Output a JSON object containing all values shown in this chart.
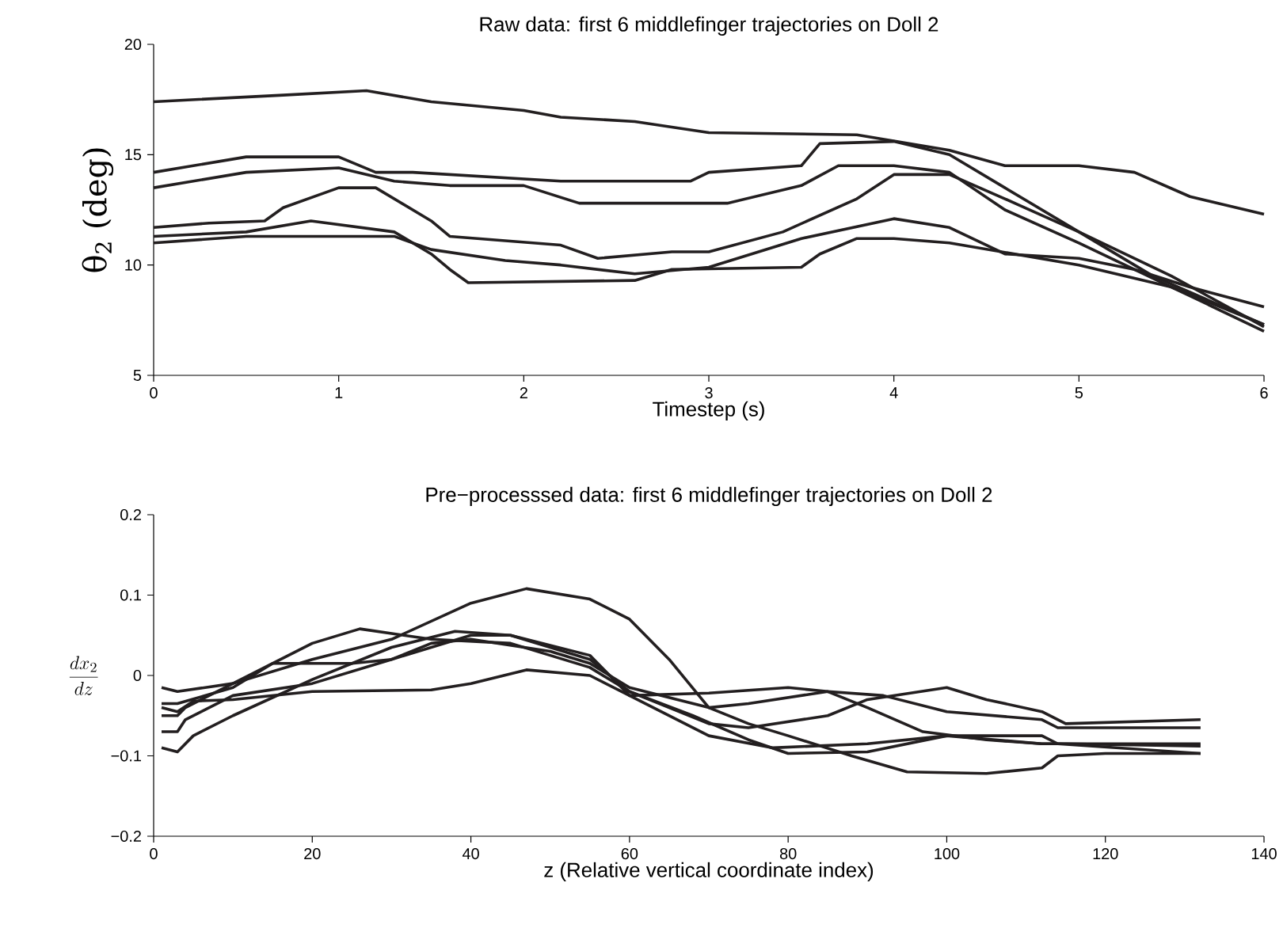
{
  "chart_data": [
    {
      "type": "line",
      "title": "Raw data: first 6 middlefinger trajectories on Doll 2",
      "xlabel": "Timestep (s)",
      "ylabel": "θ$_{2}$ (deg)",
      "xlim": [
        0,
        6
      ],
      "ylim": [
        5,
        20
      ],
      "xticks": [
        0,
        1,
        2,
        3,
        4,
        5,
        6
      ],
      "yticks": [
        5,
        10,
        15,
        20
      ],
      "series": [
        {
          "color": "#231f20",
          "x": [
            0,
            0.7,
            1.15,
            1.5,
            2.0,
            2.2,
            2.6,
            3.0,
            3.8,
            4.3,
            4.6,
            5.0,
            5.3,
            5.6,
            6.0
          ],
          "values": [
            17.4,
            17.7,
            17.9,
            17.4,
            17.0,
            16.7,
            16.5,
            16.0,
            15.9,
            15.2,
            14.5,
            14.5,
            14.2,
            13.1,
            12.3
          ]
        },
        {
          "color": "#231f20",
          "x": [
            0,
            0.5,
            1.0,
            1.2,
            1.4,
            2.2,
            2.9,
            3.0,
            3.5,
            3.6,
            4.0,
            4.3,
            4.6,
            5.0,
            5.5,
            6.0
          ],
          "values": [
            14.2,
            14.9,
            14.9,
            14.2,
            14.2,
            13.8,
            13.8,
            14.2,
            14.5,
            15.5,
            15.6,
            15.0,
            13.5,
            11.5,
            9.5,
            7.2
          ]
        },
        {
          "color": "#231f20",
          "x": [
            0,
            0.5,
            1.0,
            1.3,
            1.6,
            2.0,
            2.3,
            3.1,
            3.5,
            3.7,
            4.0,
            4.3,
            4.6,
            5.0,
            5.5,
            6.0
          ],
          "values": [
            13.5,
            14.2,
            14.4,
            13.8,
            13.6,
            13.6,
            12.8,
            12.8,
            13.6,
            14.5,
            14.5,
            14.2,
            12.5,
            11.0,
            9.0,
            7.0
          ]
        },
        {
          "color": "#231f20",
          "x": [
            0,
            0.3,
            0.6,
            0.7,
            1.0,
            1.2,
            1.5,
            1.6,
            2.2,
            2.4,
            2.8,
            3.0,
            3.4,
            3.8,
            4.0,
            4.3,
            4.6,
            5.0,
            5.4,
            6.0
          ],
          "values": [
            11.7,
            11.9,
            12.0,
            12.6,
            13.5,
            13.5,
            12.0,
            11.3,
            10.9,
            10.3,
            10.6,
            10.6,
            11.5,
            13.0,
            14.1,
            14.1,
            13.0,
            11.5,
            9.5,
            7.3
          ]
        },
        {
          "color": "#231f20",
          "x": [
            0,
            0.5,
            0.85,
            1.3,
            1.5,
            1.6,
            1.7,
            2.6,
            2.8,
            3.5,
            3.6,
            3.8,
            4.0,
            4.3,
            5.0,
            5.5,
            6.0
          ],
          "values": [
            11.3,
            11.5,
            12.0,
            11.5,
            10.5,
            9.8,
            9.2,
            9.3,
            9.8,
            9.9,
            10.5,
            11.2,
            11.2,
            11.0,
            10.0,
            9.0,
            7.3
          ]
        },
        {
          "color": "#231f20",
          "x": [
            0,
            0.5,
            1.3,
            1.5,
            1.9,
            2.2,
            2.6,
            3.0,
            3.5,
            4.0,
            4.3,
            4.6,
            5.0,
            5.3,
            5.6,
            6.0
          ],
          "values": [
            11.0,
            11.3,
            11.3,
            10.7,
            10.2,
            10.0,
            9.6,
            9.9,
            11.2,
            12.1,
            11.7,
            10.5,
            10.3,
            9.8,
            9.0,
            8.1
          ]
        }
      ]
    },
    {
      "type": "line",
      "title": "Pre−processsed data: first 6 middlefinger trajectories on Doll 2",
      "xlabel": "z (Relative vertical coordinate index)",
      "ylabel": "\\frac{dx_2}{dz}",
      "xlim": [
        0,
        140
      ],
      "ylim": [
        -0.2,
        0.2
      ],
      "xticks": [
        0,
        20,
        40,
        60,
        80,
        100,
        120,
        140
      ],
      "yticks": [
        {
          "value": -0.2,
          "label": "−0.2"
        },
        {
          "value": -0.1,
          "label": "−0.1"
        },
        0,
        0.1,
        0.2
      ],
      "series": [
        {
          "color": "#231f20",
          "x": [
            1,
            3,
            10,
            20,
            30,
            40,
            47,
            55,
            60,
            65,
            70,
            75,
            80,
            88,
            95,
            105,
            112,
            114,
            120,
            132
          ],
          "values": [
            -0.015,
            -0.02,
            -0.01,
            0.02,
            0.045,
            0.09,
            0.108,
            0.095,
            0.07,
            0.02,
            -0.04,
            -0.06,
            -0.075,
            -0.1,
            -0.12,
            -0.122,
            -0.115,
            -0.1,
            -0.097,
            -0.097
          ]
        },
        {
          "color": "#231f20",
          "x": [
            1,
            3,
            4,
            10,
            20,
            26,
            35,
            45,
            55,
            60,
            65,
            70,
            75,
            85,
            90,
            100,
            105,
            112,
            115,
            132
          ],
          "values": [
            -0.05,
            -0.05,
            -0.04,
            -0.01,
            0.04,
            0.058,
            0.045,
            0.04,
            0.01,
            -0.02,
            -0.04,
            -0.06,
            -0.065,
            -0.05,
            -0.03,
            -0.015,
            -0.03,
            -0.045,
            -0.06,
            -0.055
          ]
        },
        {
          "color": "#231f20",
          "x": [
            1,
            3,
            5,
            10,
            20,
            35,
            40,
            47,
            55,
            60,
            70,
            80,
            85,
            90,
            97,
            105,
            112,
            120,
            132
          ],
          "values": [
            -0.04,
            -0.045,
            -0.032,
            -0.03,
            -0.02,
            -0.018,
            -0.01,
            0.007,
            0.0,
            -0.025,
            -0.022,
            -0.015,
            -0.02,
            -0.04,
            -0.07,
            -0.08,
            -0.085,
            -0.085,
            -0.085
          ]
        },
        {
          "color": "#231f20",
          "x": [
            1,
            3,
            4,
            10,
            20,
            30,
            40,
            45,
            55,
            60,
            65,
            70,
            78,
            90,
            100,
            112,
            115,
            132
          ],
          "values": [
            -0.07,
            -0.07,
            -0.055,
            -0.025,
            -0.01,
            0.02,
            0.05,
            0.05,
            0.025,
            -0.025,
            -0.05,
            -0.075,
            -0.09,
            -0.085,
            -0.075,
            -0.085,
            -0.085,
            -0.088
          ]
        },
        {
          "color": "#231f20",
          "x": [
            1,
            3,
            5,
            10,
            20,
            30,
            38,
            45,
            55,
            60,
            68,
            75,
            80,
            90,
            100,
            112,
            114,
            132
          ],
          "values": [
            -0.09,
            -0.095,
            -0.075,
            -0.05,
            -0.005,
            0.035,
            0.055,
            0.05,
            0.02,
            -0.02,
            -0.05,
            -0.08,
            -0.097,
            -0.095,
            -0.075,
            -0.075,
            -0.085,
            -0.097
          ]
        },
        {
          "color": "#231f20",
          "x": [
            1,
            3,
            10,
            15,
            25,
            30,
            35,
            40,
            50,
            55,
            60,
            70,
            75,
            85,
            92,
            100,
            112,
            114,
            132
          ],
          "values": [
            -0.035,
            -0.035,
            -0.015,
            0.015,
            0.015,
            0.02,
            0.04,
            0.045,
            0.03,
            0.015,
            -0.015,
            -0.04,
            -0.035,
            -0.02,
            -0.025,
            -0.045,
            -0.055,
            -0.065,
            -0.065
          ]
        }
      ]
    }
  ]
}
